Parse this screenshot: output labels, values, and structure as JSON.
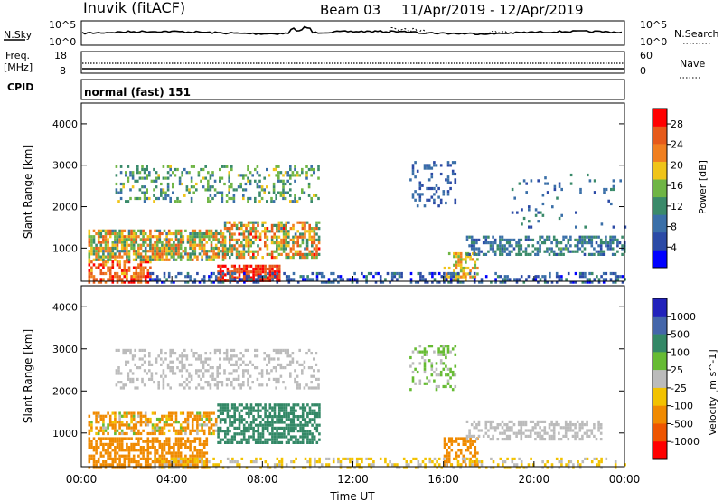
{
  "header": {
    "station": "Inuvik (fitACF)",
    "beam": "Beam 03",
    "date_range": "11/Apr/2019 - 12/Apr/2019"
  },
  "strip_panels": {
    "nsky_label": "N.Sky",
    "nsky_ticks": [
      "10^5",
      "10^0"
    ],
    "nsearch_label": "N.Search",
    "nsearch_ticks": [
      "10^5",
      "10^0"
    ],
    "freq_label_line1": "Freq.",
    "freq_label_line2": "[MHz]",
    "freq_ticks": [
      "18",
      "8"
    ],
    "nave_label": "Nave",
    "nave_ticks": [
      "60",
      "0"
    ],
    "cpid_label": "CPID",
    "cpid_text": "normal (fast) 151"
  },
  "colors": {
    "power_scale": [
      "#0000ff",
      "#2b4aa6",
      "#3a6fa8",
      "#3a8a6a",
      "#6fb545",
      "#f0c419",
      "#f07f1f",
      "#e65a1a",
      "#ff0000"
    ],
    "velocity_scale": [
      "#2222bb",
      "#4466aa",
      "#338866",
      "#66bb33",
      "#bbbbbb",
      "#f2c200",
      "#f08a00",
      "#ee5500",
      "#ff0000"
    ]
  },
  "chart_data": [
    {
      "type": "heatmap",
      "name": "power",
      "ylabel": "Slant Range [km]",
      "yticks": [
        1000,
        2000,
        3000,
        4000
      ],
      "ylim": [
        200,
        4500
      ],
      "xlim_hours": [
        0,
        24
      ],
      "colorbar_label": "Power [dB]",
      "colorbar_ticks": [
        4,
        8,
        12,
        16,
        20,
        24,
        28
      ],
      "colorbar_range": [
        0,
        31
      ],
      "scatter_regions": [
        {
          "t": [
            0.3,
            3.0
          ],
          "r": [
            200,
            700
          ],
          "v": [
            20,
            30
          ],
          "d": 0.65
        },
        {
          "t": [
            0.3,
            6.3
          ],
          "r": [
            750,
            1450
          ],
          "v": [
            10,
            26
          ],
          "d": 0.75
        },
        {
          "t": [
            6.0,
            8.8
          ],
          "r": [
            200,
            600
          ],
          "v": [
            24,
            30
          ],
          "d": 0.8
        },
        {
          "t": [
            6.3,
            10.5
          ],
          "r": [
            750,
            1650
          ],
          "v": [
            10,
            28
          ],
          "d": 0.6
        },
        {
          "t": [
            1.5,
            10.5
          ],
          "r": [
            2100,
            3000
          ],
          "v": [
            8,
            18
          ],
          "d": 0.3
        },
        {
          "t": [
            14.5,
            16.5
          ],
          "r": [
            2000,
            3100
          ],
          "v": [
            4,
            10
          ],
          "d": 0.25
        },
        {
          "t": [
            16.0,
            17.5
          ],
          "r": [
            250,
            900
          ],
          "v": [
            14,
            24
          ],
          "d": 0.5
        },
        {
          "t": [
            17.0,
            24.0
          ],
          "r": [
            850,
            1300
          ],
          "v": [
            6,
            14
          ],
          "d": 0.55
        },
        {
          "t": [
            3.0,
            24.0
          ],
          "r": [
            200,
            420
          ],
          "v": [
            2,
            12
          ],
          "d": 0.35
        },
        {
          "t": [
            19.0,
            24.0
          ],
          "r": [
            1500,
            2800
          ],
          "v": [
            4,
            12
          ],
          "d": 0.06
        }
      ]
    },
    {
      "type": "heatmap",
      "name": "velocity",
      "ylabel": "Slant Range [km]",
      "yticks": [
        1000,
        2000,
        3000,
        4000
      ],
      "ylim": [
        200,
        4500
      ],
      "xticks": [
        "00:00",
        "04:00",
        "08:00",
        "12:00",
        "16:00",
        "20:00",
        "00:00"
      ],
      "xlabel": "Time UT",
      "xlim_hours": [
        0,
        24
      ],
      "colorbar_label": "Velocity [m s^-1]",
      "colorbar_ticks": [
        "1000",
        "500",
        "100",
        "25",
        "-25",
        "-100",
        "-500",
        "-1000"
      ],
      "scatter_regions": [
        {
          "t": [
            0.3,
            5.5
          ],
          "r": [
            200,
            900
          ],
          "v": [
            -500,
            -100
          ],
          "d": 0.65
        },
        {
          "t": [
            0.3,
            6.0
          ],
          "r": [
            950,
            1500
          ],
          "v": [
            -500,
            100
          ],
          "d": 0.6
        },
        {
          "t": [
            6.0,
            10.5
          ],
          "r": [
            800,
            1700
          ],
          "v": [
            100,
            500
          ],
          "d": 0.65
        },
        {
          "t": [
            1.5,
            10.5
          ],
          "r": [
            2100,
            3000
          ],
          "v": [
            -25,
            25
          ],
          "d": 0.3
        },
        {
          "t": [
            14.5,
            16.5
          ],
          "r": [
            2000,
            3100
          ],
          "v": [
            -25,
            100
          ],
          "d": 0.25
        },
        {
          "t": [
            16.0,
            17.5
          ],
          "r": [
            250,
            900
          ],
          "v": [
            -500,
            -100
          ],
          "d": 0.45
        },
        {
          "t": [
            17.0,
            23.0
          ],
          "r": [
            850,
            1300
          ],
          "v": [
            -25,
            25
          ],
          "d": 0.5
        },
        {
          "t": [
            3.0,
            24.0
          ],
          "r": [
            200,
            420
          ],
          "v": [
            -100,
            25
          ],
          "d": 0.35
        }
      ]
    }
  ]
}
